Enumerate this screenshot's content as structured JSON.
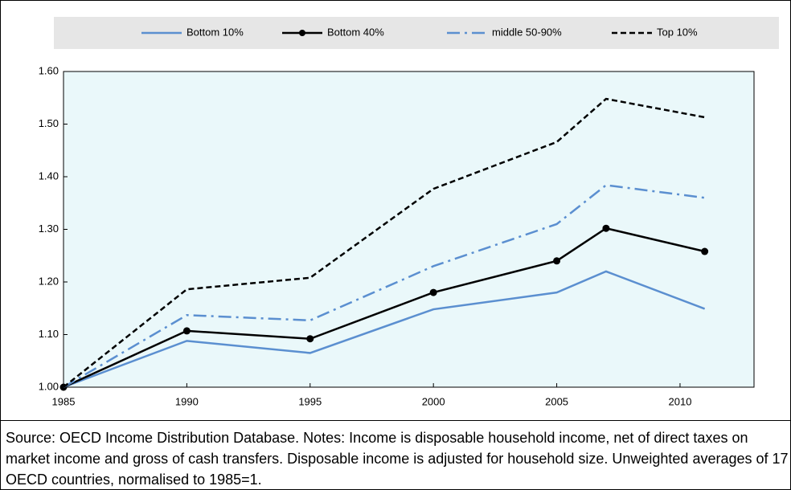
{
  "chart_data": {
    "type": "line",
    "x": [
      1985,
      1990,
      1995,
      2000,
      2005,
      2007,
      2011
    ],
    "series": [
      {
        "name": "Bottom 10%",
        "color": "#5b8fd0",
        "dash": "solid",
        "marker": "none",
        "values": [
          1.0,
          1.088,
          1.065,
          1.148,
          1.18,
          1.22,
          1.149
        ]
      },
      {
        "name": "Bottom 40%",
        "color": "#000000",
        "dash": "solid",
        "marker": "circle",
        "values": [
          1.0,
          1.107,
          1.092,
          1.18,
          1.24,
          1.302,
          1.258
        ]
      },
      {
        "name": "middle 50-90%",
        "color": "#5b8fd0",
        "dash": "dashdot",
        "marker": "none",
        "values": [
          1.0,
          1.137,
          1.127,
          1.23,
          1.31,
          1.384,
          1.36
        ]
      },
      {
        "name": "Top 10%",
        "color": "#000000",
        "dash": "dashed",
        "marker": "none",
        "values": [
          1.0,
          1.186,
          1.208,
          1.377,
          1.466,
          1.548,
          1.513
        ]
      }
    ],
    "xlim": [
      1985,
      2013
    ],
    "xticks": [
      1985,
      1990,
      1995,
      2000,
      2005,
      2010
    ],
    "ylim": [
      1.0,
      1.6
    ],
    "yticks": [
      {
        "value": 1.0,
        "label": "1.00"
      },
      {
        "value": 1.1,
        "label": "1.10"
      },
      {
        "value": 1.2,
        "label": "1.20"
      },
      {
        "value": 1.3,
        "label": "1.30"
      },
      {
        "value": 1.4,
        "label": "1.40"
      },
      {
        "value": 1.5,
        "label": "1.50"
      },
      {
        "value": 1.6,
        "label": "1.60"
      }
    ],
    "grid": false,
    "legend": "top",
    "plot_background": "#eaf8fa",
    "legend_background": "#e6e6e6",
    "note": "Source: OECD Income Distribution Database. Notes: Income is disposable household income, net of direct taxes on market income and gross of cash transfers. Disposable income is adjusted for household size. Unweighted averages of 17 OECD countries, normalised to 1985=1."
  }
}
